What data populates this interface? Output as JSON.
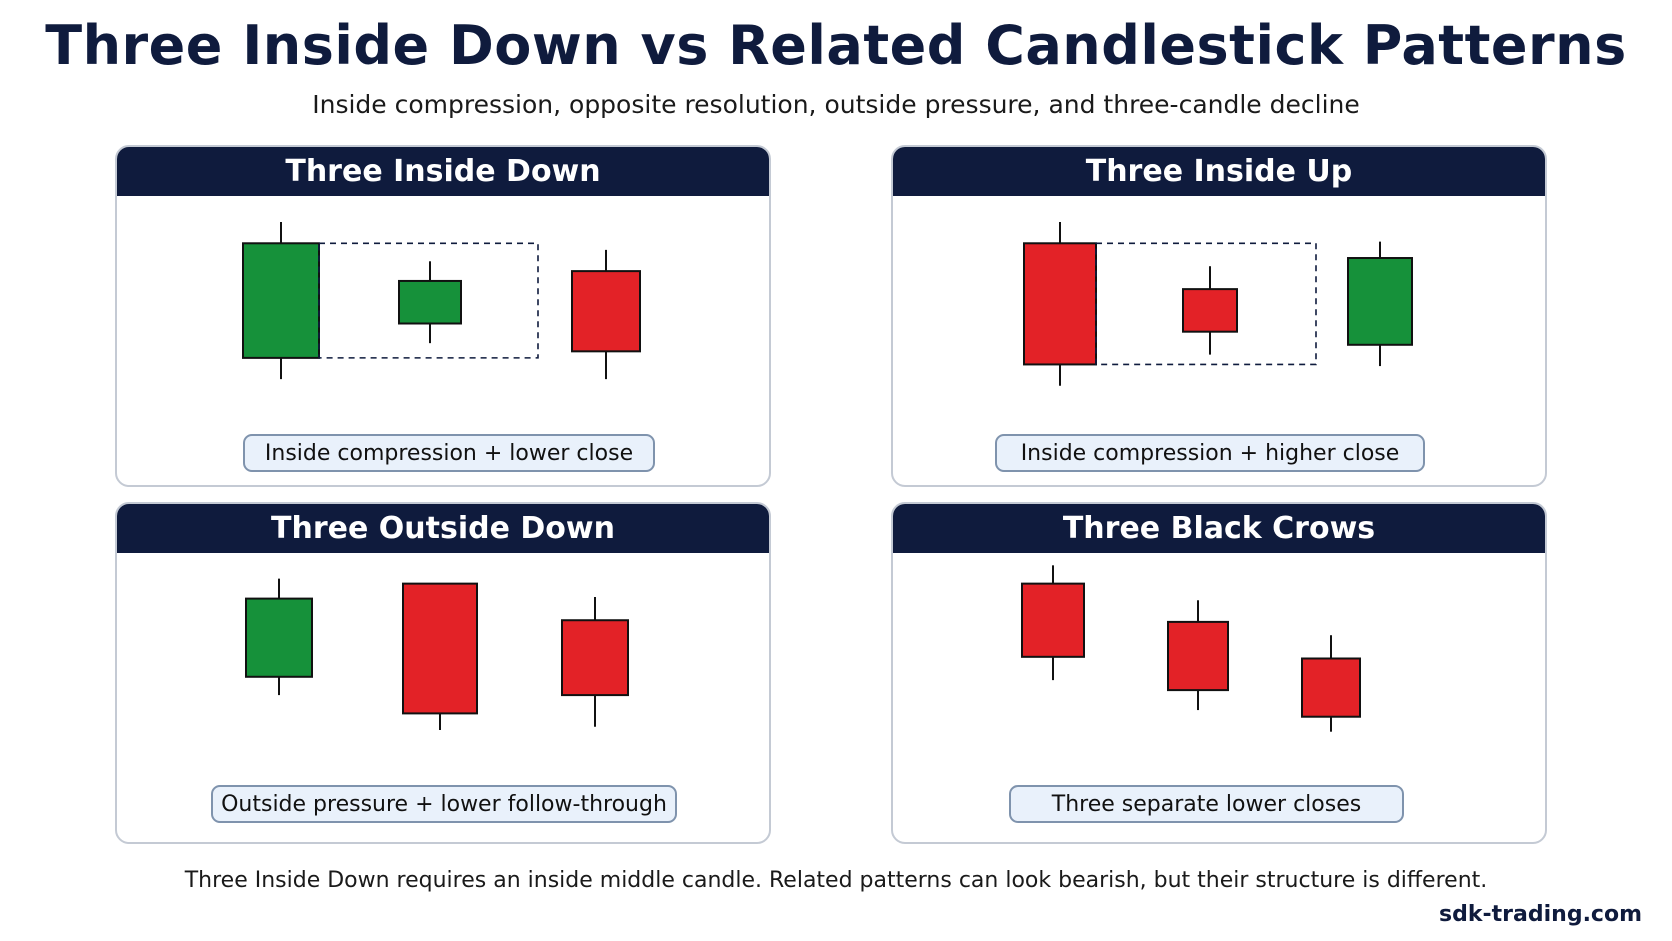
{
  "title": "Three Inside Down vs Related Candlestick Patterns",
  "subtitle": "Inside compression, opposite resolution, outside pressure, and three-candle decline",
  "colors": {
    "bull": "#16913a",
    "bear": "#e32227",
    "header": "#0f1b3d",
    "pill_bg": "#e9f1fb",
    "pill_border": "#7f93ad"
  },
  "panels": [
    {
      "title": "Three Inside Down",
      "caption": "Inside compression + lower close",
      "candles": [
        {
          "color": "bull",
          "open": 30,
          "close": 100,
          "high": 113,
          "low": 17
        },
        {
          "color": "bull",
          "open": 51,
          "close": 77,
          "high": 89,
          "low": 39
        },
        {
          "color": "bear",
          "open": 83,
          "close": 34,
          "high": 96,
          "low": 17
        }
      ],
      "inside_box": true
    },
    {
      "title": "Three Inside Up",
      "caption": "Inside compression + higher close",
      "candles": [
        {
          "color": "bear",
          "open": 100,
          "close": 26,
          "high": 113,
          "low": 13
        },
        {
          "color": "bear",
          "open": 72,
          "close": 46,
          "high": 86,
          "low": 32
        },
        {
          "color": "bull",
          "open": 38,
          "close": 91,
          "high": 101,
          "low": 25
        }
      ],
      "inside_box": true
    },
    {
      "title": "Three Outside Down",
      "caption": "Outside pressure + lower follow-through",
      "candles": [
        {
          "color": "bull",
          "open": 44,
          "close": 91,
          "high": 103,
          "low": 33
        },
        {
          "color": "bear",
          "open": 100,
          "close": 22,
          "high": 100,
          "low": 12
        },
        {
          "color": "bear",
          "open": 78,
          "close": 33,
          "high": 92,
          "low": 14
        }
      ],
      "inside_box": false
    },
    {
      "title": "Three Black Crows",
      "caption": "Three separate lower closes",
      "candles": [
        {
          "color": "bear",
          "open": 100,
          "close": 56,
          "high": 111,
          "low": 42
        },
        {
          "color": "bear",
          "open": 77,
          "close": 36,
          "high": 90,
          "low": 24
        },
        {
          "color": "bear",
          "open": 55,
          "close": 20,
          "high": 69,
          "low": 11
        }
      ],
      "inside_box": false
    }
  ],
  "footer": "Three Inside Down requires an inside middle candle. Related patterns can look bearish, but their structure is different.",
  "brand": "sdk-trading.com"
}
